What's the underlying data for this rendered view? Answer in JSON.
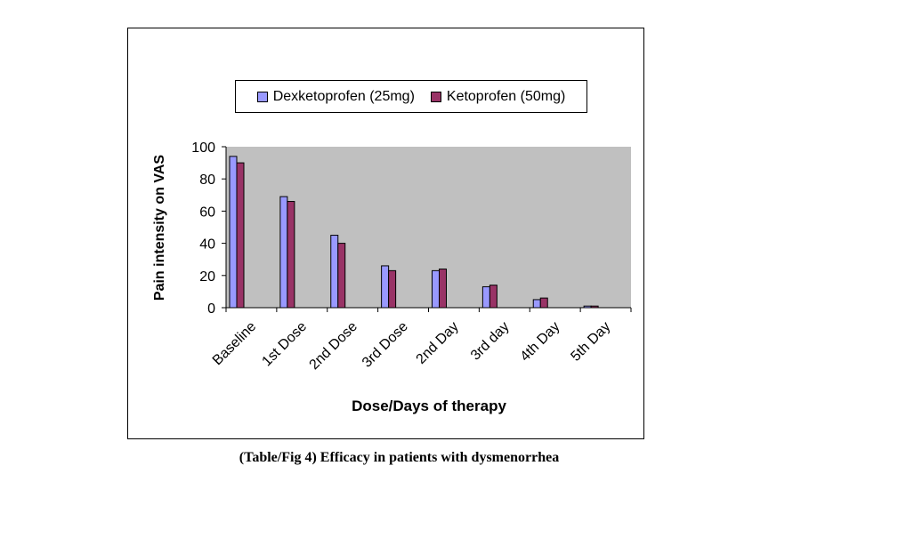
{
  "caption": "(Table/Fig 4) Efficacy in patients with dysmenorrhea",
  "colors": {
    "plot_bg": "#c0c0c0",
    "series1": "#9999ff",
    "series2": "#993366"
  },
  "chart_data": {
    "type": "bar",
    "title": "",
    "xlabel": "Dose/Days of therapy",
    "ylabel": "Pain intensity on VAS",
    "ylim": [
      0,
      100
    ],
    "yticks": [
      0,
      20,
      40,
      60,
      80,
      100
    ],
    "legend_position": "top",
    "grid": false,
    "categories": [
      "Baseline",
      "1st Dose",
      "2nd Dose",
      "3rd Dose",
      "2nd Day",
      "3rd day",
      "4th Day",
      "5th Day"
    ],
    "series": [
      {
        "name": "Dexketoprofen (25mg)",
        "color": "#9999ff",
        "values": [
          94,
          69,
          45,
          26,
          23,
          13,
          5,
          1
        ]
      },
      {
        "name": "Ketoprofen (50mg)",
        "color": "#993366",
        "values": [
          90,
          66,
          40,
          23,
          24,
          14,
          6,
          1
        ]
      }
    ]
  }
}
